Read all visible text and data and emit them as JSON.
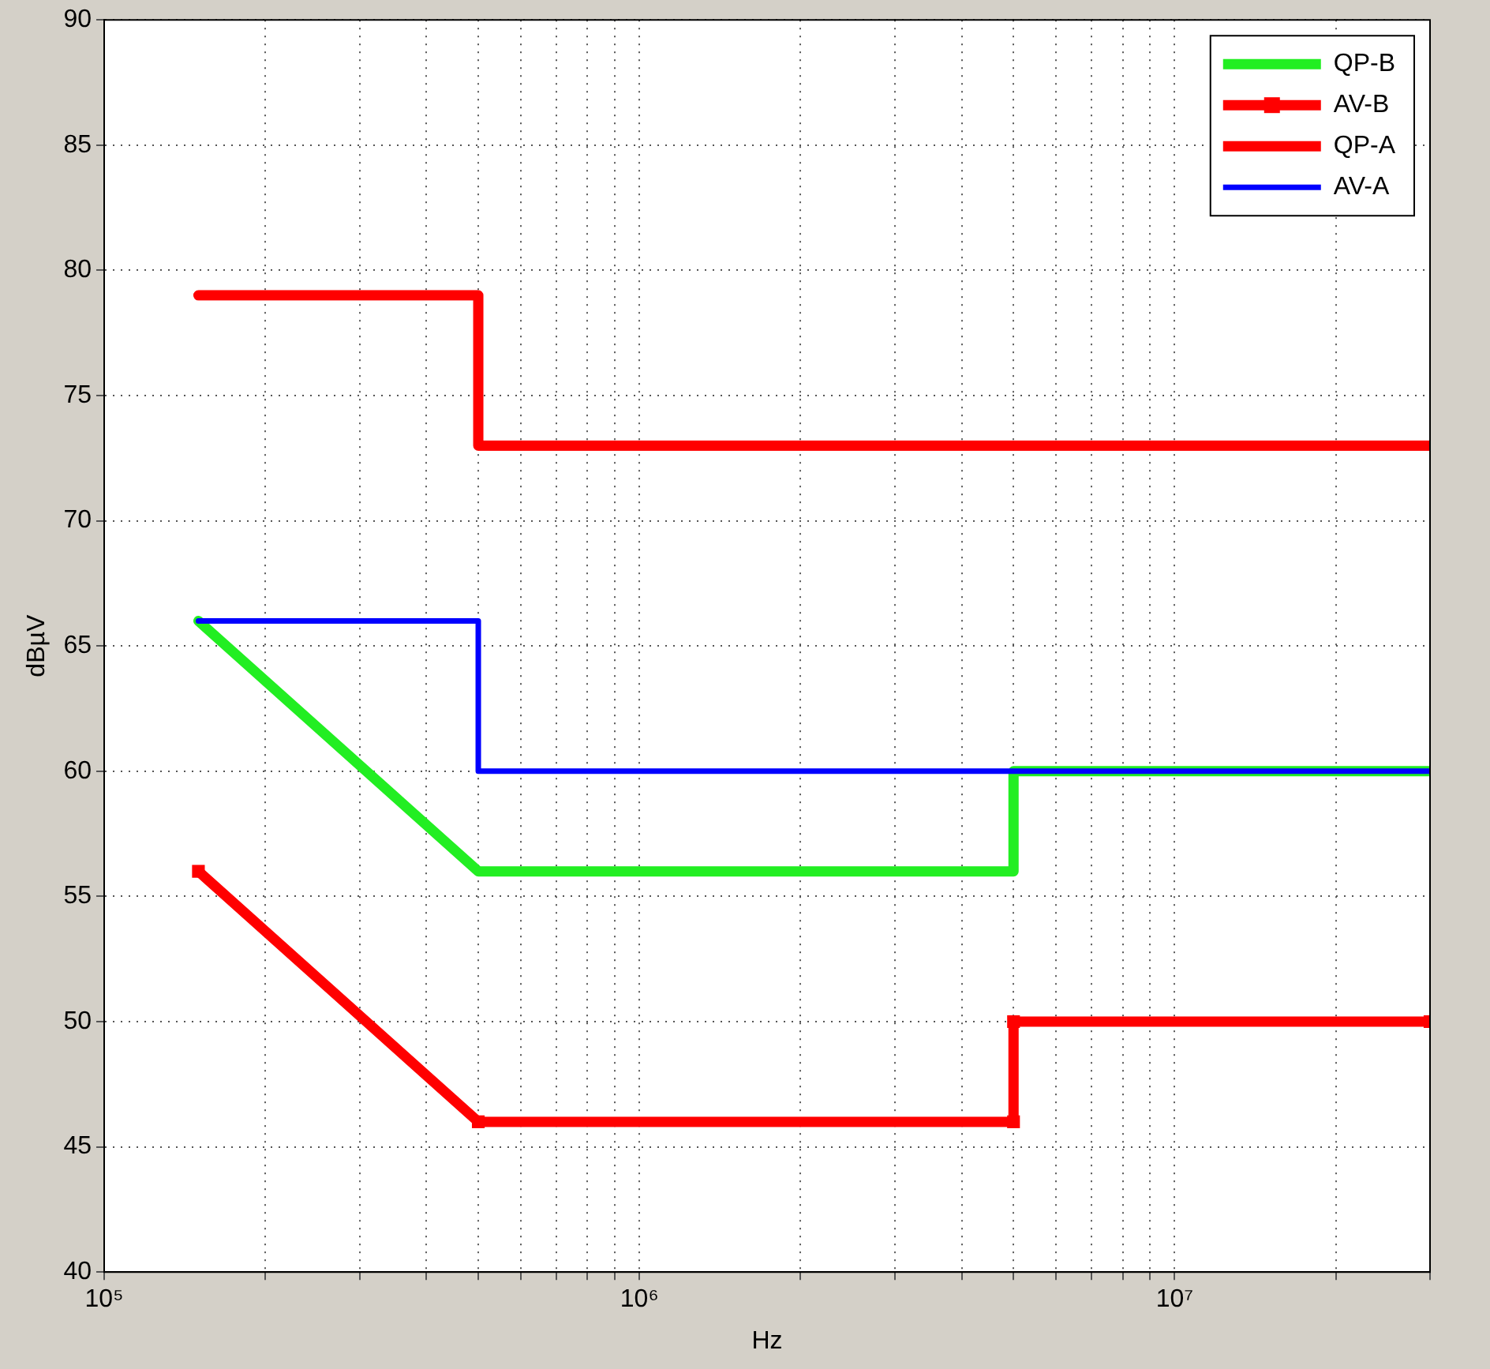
{
  "chart_data": {
    "type": "line",
    "xlabel": "Hz",
    "ylabel": "dBµV",
    "log": "x",
    "grid": true,
    "legend": "top right",
    "line_style": "solid",
    "marker": "none",
    "xlim": [
      100000,
      30000000
    ],
    "xticks": [
      {
        "value": 100000,
        "label": "10⁵"
      },
      {
        "value": 200000,
        "label": null
      },
      {
        "value": 300000,
        "label": null
      },
      {
        "value": 400000,
        "label": null
      },
      {
        "value": 500000,
        "label": null
      },
      {
        "value": 600000,
        "label": null
      },
      {
        "value": 700000,
        "label": null
      },
      {
        "value": 800000,
        "label": null
      },
      {
        "value": 900000,
        "label": null
      },
      {
        "value": 1000000,
        "label": "10⁶"
      },
      {
        "value": 2000000,
        "label": null
      },
      {
        "value": 3000000,
        "label": null
      },
      {
        "value": 4000000,
        "label": null
      },
      {
        "value": 5000000,
        "label": null
      },
      {
        "value": 6000000,
        "label": null
      },
      {
        "value": 7000000,
        "label": null
      },
      {
        "value": 8000000,
        "label": null
      },
      {
        "value": 9000000,
        "label": null
      },
      {
        "value": 10000000,
        "label": "10⁷"
      },
      {
        "value": 20000000,
        "label": null
      },
      {
        "value": 30000000,
        "label": null
      }
    ],
    "ylim": [
      40,
      90
    ],
    "yticks": [
      40,
      45,
      50,
      55,
      60,
      65,
      70,
      75,
      80,
      85,
      90
    ],
    "series": [
      {
        "name": "QP-B",
        "color": "#22ee22",
        "x": [
          150000,
          500000,
          5000000,
          5000000,
          30000000
        ],
        "values": [
          66,
          56,
          56,
          60,
          60
        ]
      },
      {
        "name": "AV-B",
        "color": "#ff0000",
        "marker": "square",
        "x": [
          150000,
          500000,
          5000000,
          5000000,
          30000000
        ],
        "values": [
          56,
          46,
          46,
          50,
          50
        ]
      },
      {
        "name": "QP-A",
        "color": "#ff0000",
        "x": [
          150000,
          500000,
          500000,
          30000000
        ],
        "values": [
          79,
          79,
          73,
          73
        ]
      },
      {
        "name": "AV-A",
        "color": "#0000ff",
        "x": [
          150000,
          500000,
          500000,
          30000000
        ],
        "values": [
          66,
          66,
          60,
          60
        ]
      }
    ]
  }
}
